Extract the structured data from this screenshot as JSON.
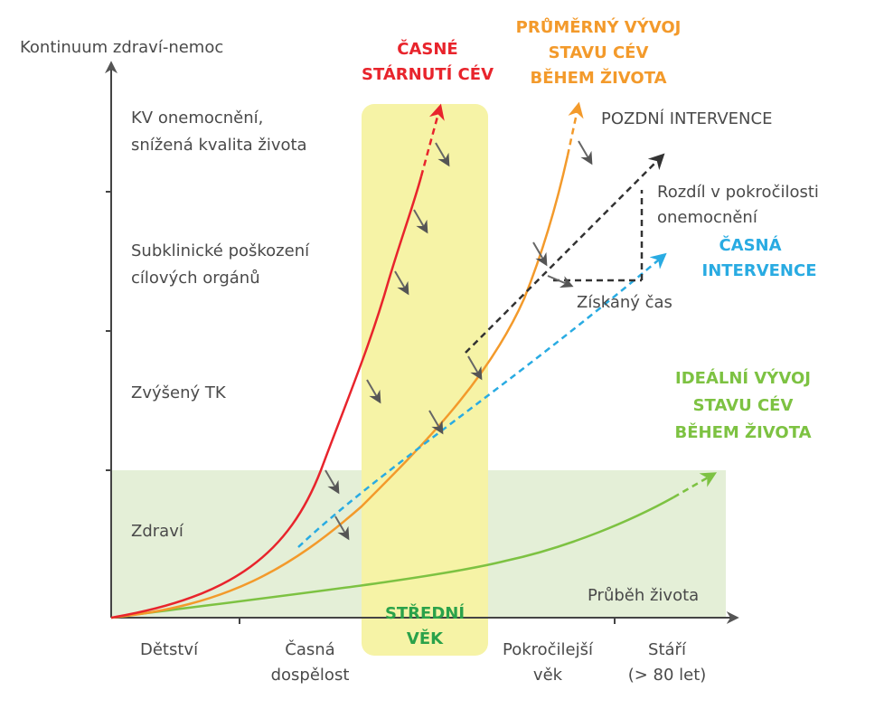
{
  "axis": {
    "y_label": "Kontinuum zdraví-nemoc",
    "x_label": "Průběh života"
  },
  "y_levels": {
    "cv_disease_1": "KV onemocnění,",
    "cv_disease_2": "snížená kvalita života",
    "subclinical_1": "Subklinické poškození",
    "subclinical_2": "cílových orgánů",
    "high_bp": "Zvýšený TK",
    "health": "Zdraví"
  },
  "x_stages": {
    "childhood": "Dětství",
    "early_adult_1": "Časná",
    "early_adult_2": "dospělost",
    "advanced_1": "Pokročilejší",
    "advanced_2": "věk",
    "old_1": "Stáří",
    "old_2": "(> 80 let)"
  },
  "middle_age": {
    "line1": "STŘEDNÍ",
    "line2": "VĚK"
  },
  "curves": {
    "early_aging_1": "ČASNÉ",
    "early_aging_2": "STÁRNUTÍ CÉV",
    "average_1": "PRŮMĚRNÝ VÝVOJ",
    "average_2": "STAVU CÉV",
    "average_3": "BĚHEM ŽIVOTA",
    "ideal_1": "IDEÁLNÍ VÝVOJ",
    "ideal_2": "STAVU CÉV",
    "ideal_3": "BĚHEM ŽIVOTA"
  },
  "interventions": {
    "late": "POZDNÍ INTERVENCE",
    "diff_1": "Rozdíl v pokročilosti",
    "diff_2": "onemocnění",
    "early_1": "ČASNÁ",
    "early_2": "INTERVENCE",
    "gained_time": "Získaný čas"
  },
  "colors": {
    "red": "#e8242c",
    "orange": "#f39a2b",
    "green": "#7dc242",
    "blue": "#29abe2",
    "health_zone": "#e4efd7",
    "middle_age_band": "#f6f3a6",
    "middle_age_text": "#2aa24a"
  }
}
